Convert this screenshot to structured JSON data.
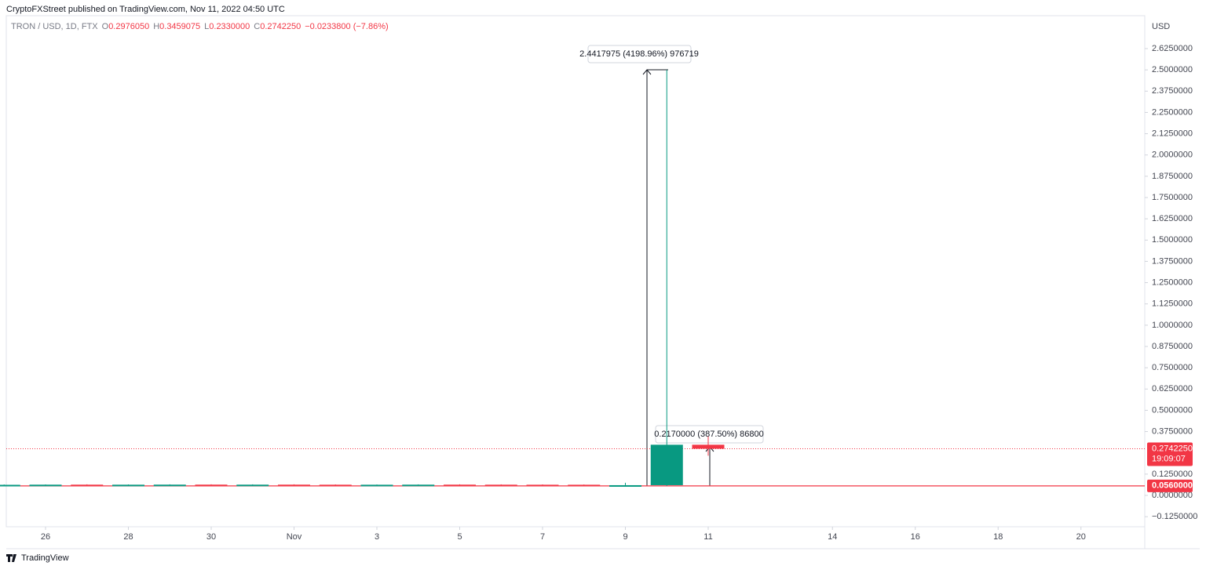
{
  "header": "CryptoFXStreet published on TradingView.com, Nov 11, 2022 04:50 UTC",
  "footer": "TradingView",
  "chart_data": {
    "type": "candlestick",
    "legend": {
      "symbol": "TRON / USD, 1D, FTX",
      "fields": [
        {
          "key": "O",
          "value": "0.2976050"
        },
        {
          "key": "H",
          "value": "0.3459075"
        },
        {
          "key": "L",
          "value": "0.2330000"
        },
        {
          "key": "C",
          "value": "0.2742250"
        }
      ],
      "change": "−0.0233800 (−7.86%)"
    },
    "axis_unit": "USD",
    "x": [
      "2022-10-25",
      "2022-10-26",
      "2022-10-27",
      "2022-10-28",
      "2022-10-29",
      "2022-10-30",
      "2022-10-31",
      "2022-11-01",
      "2022-11-02",
      "2022-11-03",
      "2022-11-04",
      "2022-11-05",
      "2022-11-06",
      "2022-11-07",
      "2022-11-08",
      "2022-11-09",
      "2022-11-10",
      "2022-11-11"
    ],
    "open": [
      0.062,
      0.0622,
      0.063,
      0.0625,
      0.0628,
      0.0632,
      0.0626,
      0.0631,
      0.0627,
      0.0622,
      0.0626,
      0.0631,
      0.0628,
      0.0626,
      0.0625,
      0.058,
      0.06,
      0.297605
    ],
    "high": [
      0.064,
      0.0645,
      0.065,
      0.0645,
      0.065,
      0.0652,
      0.0648,
      0.065,
      0.0645,
      0.064,
      0.0648,
      0.0652,
      0.0648,
      0.0645,
      0.064,
      0.074,
      2.5,
      0.3459075
    ],
    "low": [
      0.061,
      0.0612,
      0.0618,
      0.0615,
      0.0618,
      0.062,
      0.0615,
      0.062,
      0.0615,
      0.0612,
      0.0615,
      0.062,
      0.0616,
      0.0614,
      0.056,
      0.057,
      0.056,
      0.233
    ],
    "close": [
      0.0622,
      0.063,
      0.0625,
      0.0628,
      0.0632,
      0.0626,
      0.0631,
      0.0627,
      0.0622,
      0.0626,
      0.0631,
      0.0628,
      0.0626,
      0.0625,
      0.058,
      0.06,
      0.297605,
      0.274225
    ],
    "up_color": "#089981",
    "down_color": "#f23645",
    "ylim": [
      -0.18,
      2.76
    ],
    "yticks": [
      {
        "value": -0.125,
        "label": "−0.1250000"
      },
      {
        "value": 0,
        "label": "0.0000000"
      },
      {
        "value": 0.125,
        "label": "0.1250000"
      },
      {
        "value": 0.375,
        "label": "0.3750000"
      },
      {
        "value": 0.5,
        "label": "0.5000000"
      },
      {
        "value": 0.625,
        "label": "0.6250000"
      },
      {
        "value": 0.75,
        "label": "0.7500000"
      },
      {
        "value": 0.875,
        "label": "0.8750000"
      },
      {
        "value": 1,
        "label": "1.0000000"
      },
      {
        "value": 1.125,
        "label": "1.1250000"
      },
      {
        "value": 1.25,
        "label": "1.2500000"
      },
      {
        "value": 1.375,
        "label": "1.3750000"
      },
      {
        "value": 1.5,
        "label": "1.5000000"
      },
      {
        "value": 1.625,
        "label": "1.6250000"
      },
      {
        "value": 1.75,
        "label": "1.7500000"
      },
      {
        "value": 1.875,
        "label": "1.8750000"
      },
      {
        "value": 2,
        "label": "2.0000000"
      },
      {
        "value": 2.125,
        "label": "2.1250000"
      },
      {
        "value": 2.25,
        "label": "2.2500000"
      },
      {
        "value": 2.375,
        "label": "2.3750000"
      },
      {
        "value": 2.5,
        "label": "2.5000000"
      },
      {
        "value": 2.625,
        "label": "2.6250000"
      }
    ],
    "xticks": [
      {
        "value": "2022-10-26",
        "label": "26"
      },
      {
        "value": "2022-10-28",
        "label": "28"
      },
      {
        "value": "2022-10-30",
        "label": "30"
      },
      {
        "value": "2022-11-01",
        "label": "Nov"
      },
      {
        "value": "2022-11-03",
        "label": "3"
      },
      {
        "value": "2022-11-05",
        "label": "5"
      },
      {
        "value": "2022-11-07",
        "label": "7"
      },
      {
        "value": "2022-11-09",
        "label": "9"
      },
      {
        "value": "2022-11-11",
        "label": "11"
      },
      {
        "value": "2022-11-14",
        "label": "14"
      },
      {
        "value": "2022-11-16",
        "label": "16"
      },
      {
        "value": "2022-11-18",
        "label": "18"
      },
      {
        "value": "2022-11-20",
        "label": "20"
      }
    ],
    "support_line": {
      "value": 0.056,
      "label": "0.0560000",
      "color": "#f23645"
    },
    "last_price": {
      "value": 0.274225,
      "label": "0.2742250",
      "countdown": "19:09:07",
      "color": "#f23645"
    },
    "annotations": [
      "2.4417975 (4198.96%) 976719",
      "0.2170000 (387.50%) 86800"
    ],
    "grid": false
  }
}
